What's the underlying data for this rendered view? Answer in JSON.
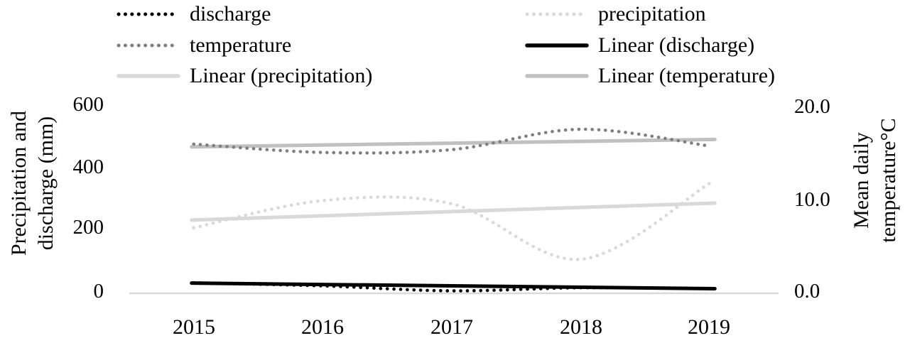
{
  "figure": {
    "background": "#ffffff",
    "text_color": "#000000"
  },
  "legend": {
    "position": "top",
    "items": [
      {
        "label": "discharge",
        "style": "dotted",
        "color": "#000000"
      },
      {
        "label": "precipitation",
        "style": "dotted",
        "color": "#d9d9d9"
      },
      {
        "label": "temperature",
        "style": "dotted",
        "color": "#7f7f7f"
      },
      {
        "label": "Linear (discharge)",
        "style": "solid",
        "color": "#000000"
      },
      {
        "label": "Linear (precipitation)",
        "style": "solid",
        "color": "#d9d9d9"
      },
      {
        "label": "Linear (temperature)",
        "style": "solid",
        "color": "#c0c0c0"
      }
    ]
  },
  "axes": {
    "left": {
      "title_line1": "Precipitation and",
      "title_line2": "discharge (mm)",
      "ticks": [
        "600",
        "400",
        "200",
        "0"
      ]
    },
    "right": {
      "title_line1": "Mean daily",
      "title_line2": "temperature°C",
      "ticks": [
        "20.0",
        "10.0",
        "0.0"
      ]
    },
    "x": {
      "ticks": [
        "2015",
        "2016",
        "2017",
        "2018",
        "2019"
      ]
    },
    "axis_line_color": "#d9d9d9"
  },
  "chart_data": {
    "type": "line",
    "title": "",
    "x": [
      2015,
      2016,
      2017,
      2018,
      2019
    ],
    "x_categories": [
      "2015",
      "2016",
      "2017",
      "2018",
      "2019"
    ],
    "left_axis": {
      "label": "Precipitation and discharge (mm)",
      "range": [
        0,
        600
      ],
      "tick_step": 200,
      "units": "mm"
    },
    "right_axis": {
      "label": "Mean daily temperature°C",
      "range": [
        0.0,
        20.0
      ],
      "tick_step": 10.0,
      "units": "°C"
    },
    "grid": "off",
    "legend_position": "top",
    "series": [
      {
        "name": "discharge",
        "style": "dotted",
        "axis": "left",
        "color": "#000000",
        "values": [
          34,
          24,
          8,
          18,
          15
        ]
      },
      {
        "name": "precipitation",
        "style": "dotted",
        "axis": "left",
        "color": "#d9d9d9",
        "values": [
          212,
          300,
          290,
          110,
          355
        ]
      },
      {
        "name": "temperature",
        "style": "dotted",
        "axis": "right",
        "color": "#7f7f7f",
        "values": [
          16.1,
          15.2,
          15.5,
          17.7,
          15.9
        ]
      },
      {
        "name": "Linear (discharge)",
        "style": "solid",
        "axis": "left",
        "color": "#000000",
        "trend_endpoints": [
          33,
          15
        ]
      },
      {
        "name": "Linear (precipitation)",
        "style": "solid",
        "axis": "left",
        "color": "#d9d9d9",
        "trend_endpoints": [
          237,
          292
        ]
      },
      {
        "name": "Linear (temperature)",
        "style": "solid",
        "axis": "right",
        "color": "#c0c0c0",
        "trend_endpoints": [
          15.8,
          16.6
        ]
      }
    ]
  }
}
